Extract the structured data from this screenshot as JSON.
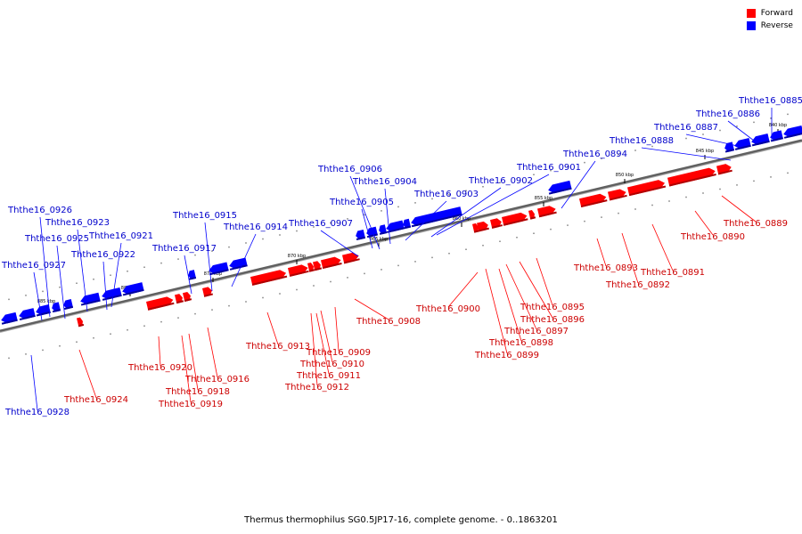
{
  "legend": {
    "forward": {
      "label": "Forward",
      "color": "#ff0000"
    },
    "reverse": {
      "label": "Reverse",
      "color": "#0000ff"
    }
  },
  "caption": "Thermus thermophilus SG0.5JP17-16, complete genome. - 0..1863201",
  "colors": {
    "forward": "#ff0000",
    "forward_dark": "#b00000",
    "reverse": "#0000ff",
    "reverse_dark": "#0000a0",
    "forward_label": "#cc0000",
    "reverse_label": "#0000cc",
    "backbone": "#808080"
  },
  "scale_labels": [
    "840 kbp",
    "845 kbp",
    "850 kbp",
    "855 kbp",
    "860 kbp",
    "865 kbp",
    "870 kbp",
    "875 kbp",
    "880 kbp",
    "885 kbp"
  ],
  "reverse_genes": [
    "Ththe16_0885",
    "Ththe16_0886",
    "Ththe16_0887",
    "Ththe16_0888",
    "Ththe16_0894",
    "Ththe16_0901",
    "Ththe16_0902",
    "Ththe16_0903",
    "Ththe16_0904",
    "Ththe16_0905",
    "Ththe16_0906",
    "Ththe16_0907",
    "Ththe16_0914",
    "Ththe16_0915",
    "Ththe16_0917",
    "Ththe16_0921",
    "Ththe16_0922",
    "Ththe16_0923",
    "Ththe16_0925",
    "Ththe16_0926",
    "Ththe16_0927",
    "Ththe16_0928"
  ],
  "forward_genes": [
    "Ththe16_0889",
    "Ththe16_0890",
    "Ththe16_0891",
    "Ththe16_0892",
    "Ththe16_0893",
    "Ththe16_0895",
    "Ththe16_0896",
    "Ththe16_0897",
    "Ththe16_0898",
    "Ththe16_0899",
    "Ththe16_0900",
    "Ththe16_0908",
    "Ththe16_0909",
    "Ththe16_0910",
    "Ththe16_0911",
    "Ththe16_0912",
    "Ththe16_0913",
    "Ththe16_0916",
    "Ththe16_0918",
    "Ththe16_0919",
    "Ththe16_0920",
    "Ththe16_0924"
  ]
}
